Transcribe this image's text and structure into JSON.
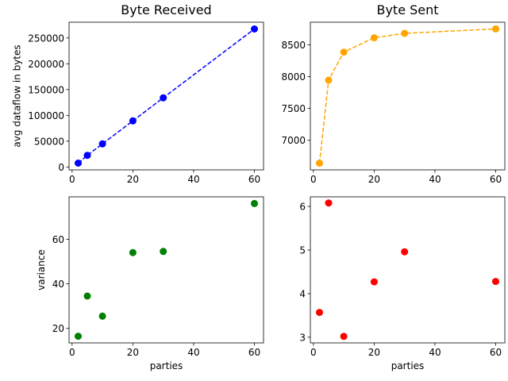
{
  "chart_data": [
    {
      "type": "line",
      "title": "Byte Received",
      "xlabel": "",
      "ylabel": "avg dataflow in bytes",
      "x": [
        2,
        5,
        10,
        20,
        30,
        60
      ],
      "series": [
        {
          "values": [
            7400,
            22500,
            44800,
            89300,
            134000,
            267500
          ],
          "color": "#0000ff",
          "line_style": "dashed",
          "marker": "circle"
        }
      ],
      "xlim": [
        -1.0,
        63.0
      ],
      "ylim": [
        -5600,
        280500
      ],
      "xticks": [
        0,
        20,
        40,
        60
      ],
      "yticks": [
        0,
        50000,
        100000,
        150000,
        200000,
        250000
      ],
      "ytick_labels": [
        "0",
        "50000",
        "100000",
        "150000",
        "200000",
        "250000"
      ],
      "grid": false
    },
    {
      "type": "line",
      "title": "Byte Sent",
      "xlabel": "",
      "ylabel": "",
      "x": [
        2,
        5,
        10,
        20,
        30,
        60
      ],
      "series": [
        {
          "values": [
            6640,
            7945,
            8385,
            8610,
            8680,
            8750
          ],
          "color": "#ffa500",
          "line_style": "dashed",
          "marker": "circle"
        }
      ],
      "xlim": [
        -1.0,
        63.0
      ],
      "ylim": [
        6535,
        8855
      ],
      "xticks": [
        0,
        20,
        40,
        60
      ],
      "yticks": [
        7000,
        7500,
        8000,
        8500
      ],
      "ytick_labels": [
        "7000",
        "7500",
        "8000",
        "8500"
      ],
      "grid": false
    },
    {
      "type": "scatter",
      "title": "",
      "xlabel": "parties",
      "ylabel": "variance",
      "x": [
        2,
        5,
        10,
        20,
        30,
        60
      ],
      "series": [
        {
          "values": [
            16.5,
            34.5,
            25.5,
            54.0,
            54.5,
            76.0
          ],
          "color": "#008000",
          "marker": "circle"
        }
      ],
      "xlim": [
        -1.0,
        63.0
      ],
      "ylim": [
        13.5,
        79.0
      ],
      "xticks": [
        0,
        20,
        40,
        60
      ],
      "yticks": [
        20,
        40,
        60
      ],
      "ytick_labels": [
        "20",
        "40",
        "60"
      ],
      "grid": false
    },
    {
      "type": "scatter",
      "title": "",
      "xlabel": "parties",
      "ylabel": "",
      "x": [
        2,
        5,
        10,
        20,
        30,
        60
      ],
      "series": [
        {
          "values": [
            3.57,
            6.08,
            3.02,
            4.27,
            4.96,
            4.28
          ],
          "color": "#ff0000",
          "marker": "circle"
        }
      ],
      "xlim": [
        -1.0,
        63.0
      ],
      "ylim": [
        2.87,
        6.22
      ],
      "xticks": [
        0,
        20,
        40,
        60
      ],
      "yticks": [
        3,
        4,
        5,
        6
      ],
      "ytick_labels": [
        "3",
        "4",
        "5",
        "6"
      ],
      "grid": false
    }
  ]
}
